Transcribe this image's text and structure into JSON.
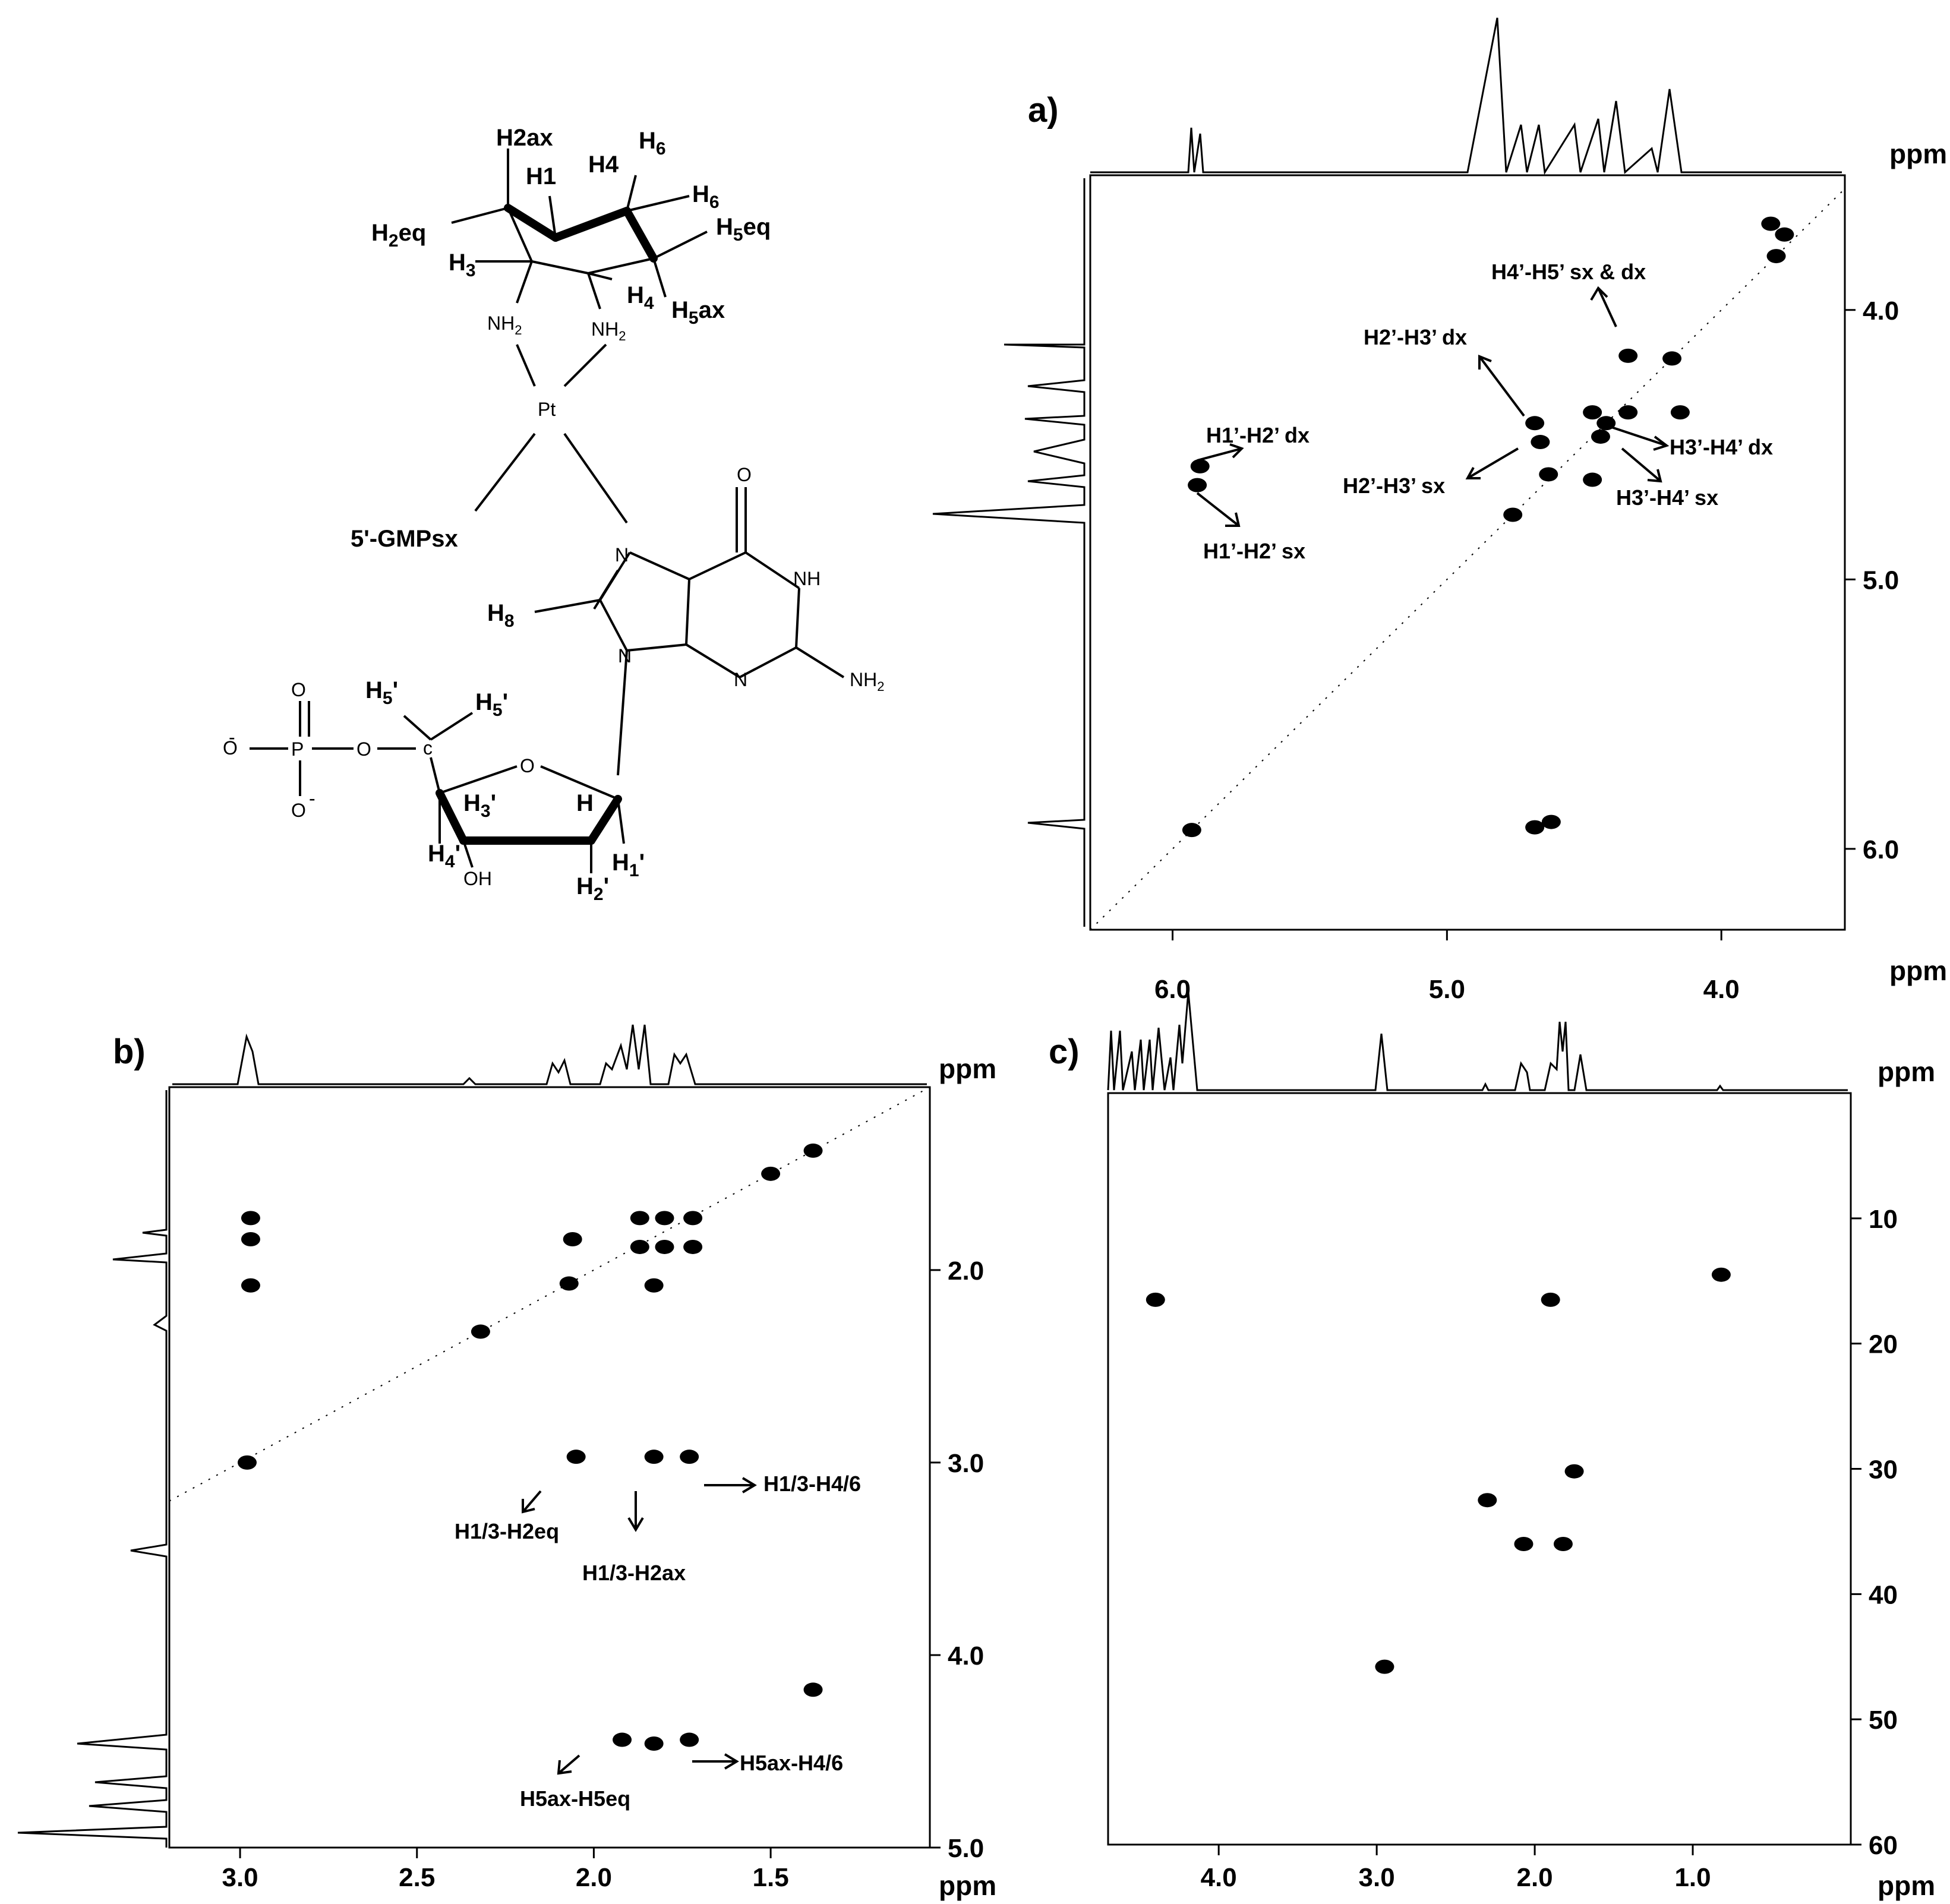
{
  "structure": {
    "labels": [
      "H2ax",
      "H1",
      "H4",
      "H6",
      "H6",
      "H5eq",
      "H2eq",
      "H3",
      "H4",
      "H5ax",
      "NH2",
      "NH2",
      "Pt",
      "5'-GMPsx",
      "O",
      "NH",
      "N",
      "NH2",
      "N",
      "N",
      "H8",
      "O",
      "P",
      "O",
      "O",
      "O",
      "H5'",
      "H5'",
      "c",
      "O",
      "H3'",
      "H",
      "H4'",
      "OH",
      "H2'",
      "H1'"
    ]
  },
  "chart_data": [
    {
      "panel": "a)",
      "type": "heatmap",
      "title": "",
      "xlabel": "ppm",
      "ylabel": "ppm",
      "xlim": [
        6.3,
        3.55
      ],
      "ylim": [
        3.5,
        6.3
      ],
      "xticks": [
        "6.0",
        "5.0",
        "4.0"
      ],
      "yticks": [
        "4.0",
        "5.0",
        "6.0"
      ],
      "peaks": [
        {
          "x": 5.9,
          "y": 4.58
        },
        {
          "x": 5.91,
          "y": 4.65
        },
        {
          "x": 5.93,
          "y": 5.93
        },
        {
          "x": 4.76,
          "y": 4.76
        },
        {
          "x": 4.68,
          "y": 4.42
        },
        {
          "x": 4.66,
          "y": 4.49
        },
        {
          "x": 4.63,
          "y": 4.61
        },
        {
          "x": 4.68,
          "y": 5.92
        },
        {
          "x": 4.62,
          "y": 5.9
        },
        {
          "x": 4.47,
          "y": 4.38
        },
        {
          "x": 4.42,
          "y": 4.42
        },
        {
          "x": 4.44,
          "y": 4.47
        },
        {
          "x": 4.47,
          "y": 4.63
        },
        {
          "x": 4.34,
          "y": 4.17
        },
        {
          "x": 4.34,
          "y": 4.38
        },
        {
          "x": 4.18,
          "y": 4.18
        },
        {
          "x": 4.15,
          "y": 4.38
        },
        {
          "x": 3.8,
          "y": 3.8
        },
        {
          "x": 3.82,
          "y": 3.68
        },
        {
          "x": 3.77,
          "y": 3.72
        }
      ],
      "annotations": [
        "H4’-H5’ sx & dx",
        "H2’-H3’ dx",
        "H1’-H2’ dx",
        "H2’-H3’ sx",
        "H1’-H2’ sx",
        "H3’-H4’ dx",
        "H3’-H4’ sx"
      ]
    },
    {
      "panel": "b)",
      "type": "heatmap",
      "title": "",
      "xlabel": "ppm",
      "ylabel": "ppm",
      "xlim": [
        3.2,
        1.05
      ],
      "ylim": [
        1.05,
        5.0
      ],
      "xticks": [
        "3.0",
        "2.5",
        "2.0",
        "1.5"
      ],
      "yticks": [
        "2.0",
        "3.0",
        "4.0",
        "5.0"
      ],
      "peaks": [
        {
          "x": 2.97,
          "y": 1.73
        },
        {
          "x": 2.97,
          "y": 1.84
        },
        {
          "x": 2.97,
          "y": 2.08
        },
        {
          "x": 2.06,
          "y": 1.84
        },
        {
          "x": 2.07,
          "y": 2.07
        },
        {
          "x": 1.87,
          "y": 1.73
        },
        {
          "x": 1.8,
          "y": 1.73
        },
        {
          "x": 1.72,
          "y": 1.73
        },
        {
          "x": 1.87,
          "y": 1.88
        },
        {
          "x": 1.8,
          "y": 1.88
        },
        {
          "x": 1.72,
          "y": 1.88
        },
        {
          "x": 1.83,
          "y": 2.08
        },
        {
          "x": 2.32,
          "y": 2.32
        },
        {
          "x": 1.5,
          "y": 1.5
        },
        {
          "x": 1.38,
          "y": 1.38
        },
        {
          "x": 2.98,
          "y": 3.0
        },
        {
          "x": 2.05,
          "y": 2.97
        },
        {
          "x": 1.83,
          "y": 2.97
        },
        {
          "x": 1.73,
          "y": 2.97
        },
        {
          "x": 1.83,
          "y": 4.46
        },
        {
          "x": 1.92,
          "y": 4.44
        },
        {
          "x": 1.73,
          "y": 4.44
        },
        {
          "x": 1.38,
          "y": 4.18
        }
      ],
      "annotations": [
        "H1/3-H4/6",
        "H1/3-H2eq",
        "H1/3-H2ax",
        "H5ax-H4/6",
        "H5ax-H5eq"
      ]
    },
    {
      "panel": "c)",
      "type": "heatmap",
      "title": "",
      "xlabel": "ppm",
      "ylabel": "ppm",
      "xlim": [
        4.7,
        0.0
      ],
      "ylim": [
        0,
        60
      ],
      "xticks": [
        "4.0",
        "3.0",
        "2.0",
        "1.0"
      ],
      "yticks": [
        "10",
        "20",
        "30",
        "40",
        "50",
        "60"
      ],
      "peaks": [
        {
          "x": 4.4,
          "y": 16.5
        },
        {
          "x": 1.9,
          "y": 16.5
        },
        {
          "x": 0.82,
          "y": 14.5
        },
        {
          "x": 1.75,
          "y": 30.2
        },
        {
          "x": 2.3,
          "y": 32.5
        },
        {
          "x": 2.07,
          "y": 36.0
        },
        {
          "x": 1.82,
          "y": 36.0
        },
        {
          "x": 2.95,
          "y": 45.8
        }
      ],
      "annotations": []
    }
  ]
}
